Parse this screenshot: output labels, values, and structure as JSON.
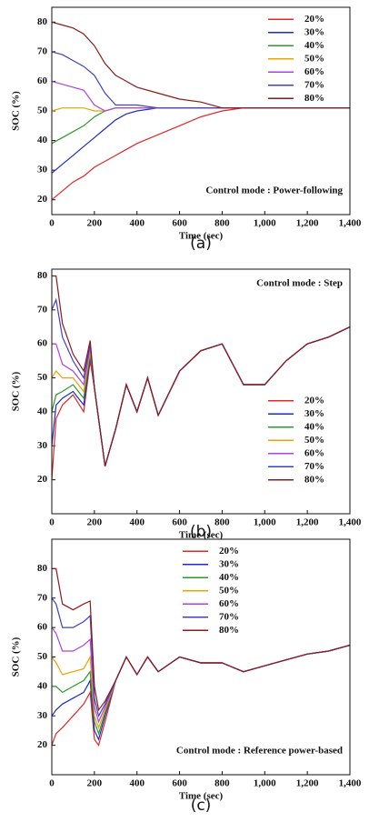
{
  "chart_data": [
    {
      "type": "line",
      "caption": "(a)",
      "annotation": "Control mode : Power-following",
      "xlabel": "Time (sec)",
      "ylabel": "SOC (%)",
      "legend": "upper right",
      "x": [
        0,
        50,
        100,
        150,
        200,
        250,
        300,
        350,
        400,
        500,
        600,
        700,
        800,
        900,
        1000,
        1200,
        1400
      ],
      "xlim": [
        0,
        1400
      ],
      "ylim": [
        15,
        85
      ],
      "xticks": [
        0,
        200,
        400,
        600,
        800,
        {
          "value": 1000,
          "label": "1,000"
        },
        {
          "value": 1200,
          "label": "1,200"
        },
        {
          "value": 1400,
          "label": "1,400"
        }
      ],
      "yticks": [
        20,
        30,
        40,
        50,
        60,
        70,
        80
      ],
      "series": [
        {
          "name": "20%",
          "color": "#e02828",
          "values": [
            20,
            23,
            26,
            28,
            31,
            33,
            35,
            37,
            39,
            42,
            45,
            48,
            50,
            51,
            51,
            51,
            51
          ]
        },
        {
          "name": "30%",
          "color": "#1c2cc8",
          "values": [
            29,
            32,
            35,
            38,
            41,
            44,
            47,
            49,
            50,
            51,
            51,
            51,
            51,
            51,
            51,
            51,
            51
          ]
        },
        {
          "name": "40%",
          "color": "#2a9a2a",
          "values": [
            39,
            41,
            43,
            45,
            48,
            50,
            51,
            51,
            51,
            51,
            51,
            51,
            51,
            51,
            51,
            51,
            51
          ]
        },
        {
          "name": "50%",
          "color": "#f0a000",
          "values": [
            50,
            51,
            51,
            51,
            50,
            50,
            51,
            51,
            51,
            51,
            51,
            51,
            51,
            51,
            51,
            51,
            51
          ]
        },
        {
          "name": "60%",
          "color": "#b040e0",
          "values": [
            60,
            59,
            58,
            57,
            52,
            50,
            51,
            51,
            51,
            51,
            51,
            51,
            51,
            51,
            51,
            51,
            51
          ]
        },
        {
          "name": "70%",
          "color": "#4040c0",
          "values": [
            70,
            69,
            67,
            65,
            62,
            56,
            52,
            52,
            52,
            51,
            51,
            51,
            51,
            51,
            51,
            51,
            51
          ]
        },
        {
          "name": "80%",
          "color": "#8b1a1a",
          "values": [
            80,
            79,
            78,
            76,
            72,
            66,
            62,
            60,
            58,
            56,
            54,
            53,
            51,
            51,
            51,
            51,
            51
          ]
        }
      ]
    },
    {
      "type": "line",
      "caption": "(b)",
      "annotation": "Control mode : Step",
      "xlabel": "Time (sec)",
      "ylabel": "SOC (%)",
      "legend": "lower right",
      "x": [
        0,
        20,
        50,
        100,
        150,
        180,
        200,
        250,
        300,
        350,
        400,
        450,
        500,
        600,
        700,
        800,
        900,
        1000,
        1100,
        1200,
        1300,
        1400
      ],
      "xlim": [
        0,
        1400
      ],
      "ylim": [
        10,
        82
      ],
      "xticks": [
        0,
        200,
        400,
        600,
        800,
        {
          "value": 1000,
          "label": "1,000"
        },
        {
          "value": 1200,
          "label": "1,200"
        },
        {
          "value": 1400,
          "label": "1,400"
        }
      ],
      "yticks": [
        20,
        30,
        40,
        50,
        60,
        70,
        80
      ],
      "series": [
        {
          "name": "20%",
          "color": "#e02828",
          "values": [
            20,
            38,
            42,
            45,
            40,
            55,
            47,
            24,
            35,
            48,
            40,
            50,
            39,
            52,
            58,
            60,
            48,
            48,
            55,
            60,
            62,
            65
          ]
        },
        {
          "name": "30%",
          "color": "#1c2cc8",
          "values": [
            30,
            42,
            44,
            46,
            42,
            56,
            47,
            24,
            35,
            48,
            40,
            50,
            39,
            52,
            58,
            60,
            48,
            48,
            55,
            60,
            62,
            65
          ]
        },
        {
          "name": "40%",
          "color": "#2a9a2a",
          "values": [
            40,
            45,
            46,
            48,
            44,
            57,
            47,
            24,
            35,
            48,
            40,
            50,
            39,
            52,
            58,
            60,
            48,
            48,
            55,
            60,
            62,
            65
          ]
        },
        {
          "name": "50%",
          "color": "#f0a000",
          "values": [
            50,
            52,
            50,
            50,
            46,
            58,
            47,
            24,
            35,
            48,
            40,
            50,
            39,
            52,
            58,
            60,
            48,
            48,
            55,
            60,
            62,
            65
          ]
        },
        {
          "name": "60%",
          "color": "#b040e0",
          "values": [
            60,
            60,
            54,
            52,
            48,
            59,
            47,
            24,
            35,
            48,
            40,
            50,
            39,
            52,
            58,
            60,
            48,
            48,
            55,
            60,
            62,
            65
          ]
        },
        {
          "name": "70%",
          "color": "#4040c0",
          "values": [
            70,
            73,
            62,
            55,
            50,
            60,
            47,
            24,
            35,
            48,
            40,
            50,
            39,
            52,
            58,
            60,
            48,
            48,
            55,
            60,
            62,
            65
          ]
        },
        {
          "name": "80%",
          "color": "#8b1a1a",
          "values": [
            80,
            80,
            66,
            57,
            52,
            61,
            47,
            24,
            35,
            48,
            40,
            50,
            39,
            52,
            58,
            60,
            48,
            48,
            55,
            60,
            62,
            65
          ]
        }
      ]
    },
    {
      "type": "line",
      "caption": "(c)",
      "annotation": "Control mode : Reference power-based",
      "xlabel": "Time (sec)",
      "ylabel": "SOC (%)",
      "legend": "upper center",
      "x": [
        0,
        20,
        50,
        100,
        150,
        180,
        200,
        220,
        250,
        300,
        350,
        400,
        450,
        500,
        600,
        700,
        800,
        900,
        1000,
        1100,
        1200,
        1300,
        1400
      ],
      "xlim": [
        0,
        1400
      ],
      "ylim": [
        10,
        90
      ],
      "xticks": [
        0,
        200,
        400,
        600,
        800,
        {
          "value": 1000,
          "label": "1,000"
        },
        {
          "value": 1200,
          "label": "1,200"
        },
        {
          "value": 1400,
          "label": "1,400"
        }
      ],
      "yticks": [
        20,
        30,
        40,
        50,
        60,
        70,
        80
      ],
      "series": [
        {
          "name": "20%",
          "color": "#e02828",
          "values": [
            20,
            24,
            26,
            30,
            34,
            38,
            22,
            20,
            28,
            42,
            50,
            44,
            50,
            45,
            50,
            48,
            48,
            45,
            47,
            49,
            51,
            52,
            54
          ]
        },
        {
          "name": "30%",
          "color": "#1c2cc8",
          "values": [
            30,
            32,
            34,
            36,
            38,
            42,
            25,
            22,
            30,
            42,
            50,
            44,
            50,
            45,
            50,
            48,
            48,
            45,
            47,
            49,
            51,
            52,
            54
          ]
        },
        {
          "name": "40%",
          "color": "#2a9a2a",
          "values": [
            40,
            40,
            38,
            40,
            42,
            45,
            28,
            24,
            31,
            42,
            50,
            44,
            50,
            45,
            50,
            48,
            48,
            45,
            47,
            49,
            51,
            52,
            54
          ]
        },
        {
          "name": "50%",
          "color": "#f0a000",
          "values": [
            50,
            48,
            44,
            45,
            46,
            50,
            30,
            26,
            32,
            42,
            50,
            44,
            50,
            45,
            50,
            48,
            48,
            45,
            47,
            49,
            51,
            52,
            54
          ]
        },
        {
          "name": "60%",
          "color": "#b040e0",
          "values": [
            60,
            58,
            52,
            52,
            54,
            56,
            33,
            28,
            33,
            42,
            50,
            44,
            50,
            45,
            50,
            48,
            48,
            45,
            47,
            49,
            51,
            52,
            54
          ]
        },
        {
          "name": "70%",
          "color": "#4040c0",
          "values": [
            70,
            68,
            60,
            60,
            62,
            64,
            36,
            30,
            34,
            42,
            50,
            44,
            50,
            45,
            50,
            48,
            48,
            45,
            47,
            49,
            51,
            52,
            54
          ]
        },
        {
          "name": "80%",
          "color": "#8b1a1a",
          "values": [
            80,
            80,
            68,
            66,
            68,
            69,
            40,
            32,
            35,
            42,
            50,
            44,
            50,
            45,
            50,
            48,
            48,
            45,
            47,
            49,
            51,
            52,
            54
          ]
        }
      ]
    }
  ]
}
